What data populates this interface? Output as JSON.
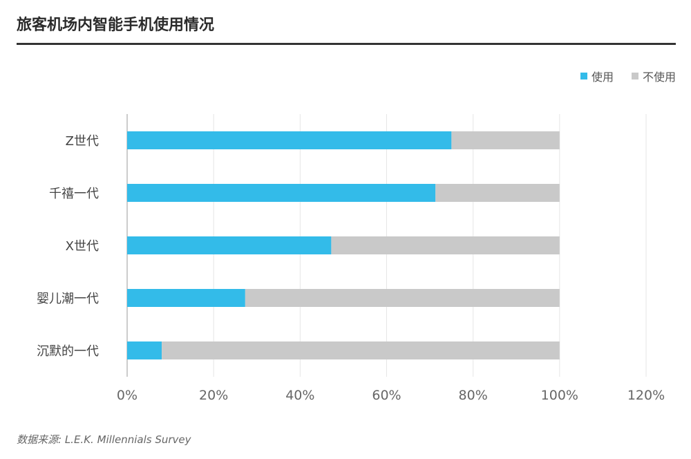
{
  "header": {
    "title": "旅客机场内智能手机使用情况"
  },
  "footer": {
    "source": "数据来源: L.E.K. Millennials Survey"
  },
  "colors": {
    "use": "#33BBE9",
    "not_use": "#C9C9C9",
    "grid": "#E6E6E6",
    "axis": "#BBBBBB"
  },
  "chart_data": {
    "type": "bar",
    "orientation": "horizontal",
    "stacked": true,
    "categories": [
      "Z世代",
      "千禧一代",
      "X世代",
      "婴儿潮一代",
      "沉默的一代"
    ],
    "series": [
      {
        "name": "使用",
        "values": [
          75,
          71.3,
          47.2,
          27.3,
          8
        ]
      },
      {
        "name": "不使用",
        "values": [
          25,
          28.7,
          52.8,
          72.7,
          92
        ]
      }
    ],
    "xlim": [
      0,
      120
    ],
    "xticks": [
      "0%",
      "20%",
      "40%",
      "60%",
      "80%",
      "100%",
      "120%"
    ],
    "grid": true,
    "legend_position": "top-right"
  }
}
